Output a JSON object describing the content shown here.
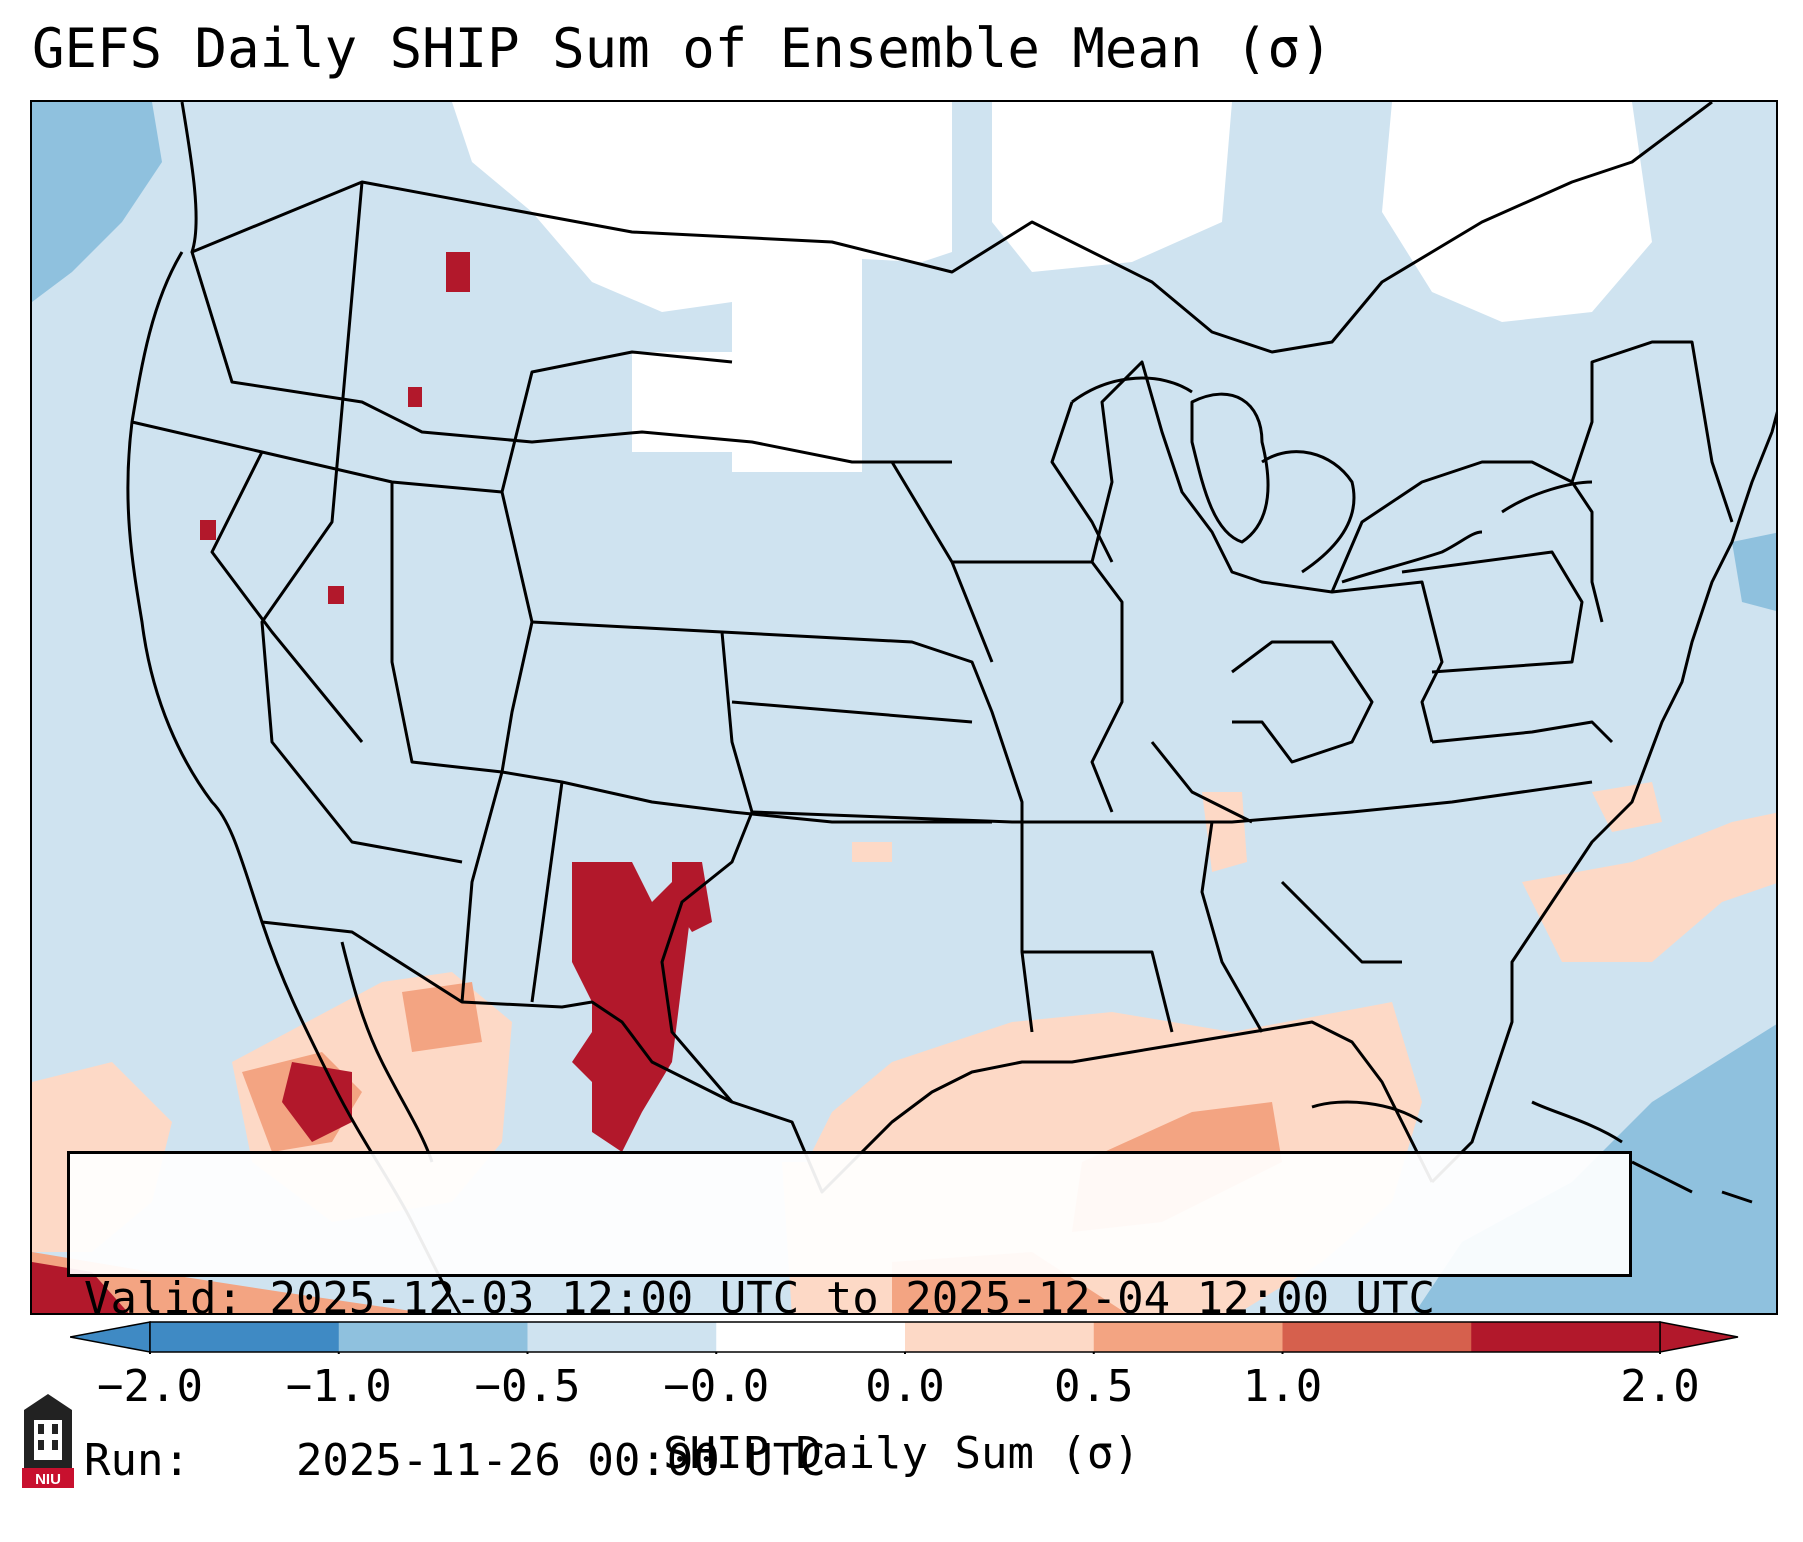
{
  "title": "GEFS Daily SHIP Sum of Ensemble Mean (σ)",
  "info": {
    "valid_label": "Valid:",
    "valid_value": "2025-12-03 12:00 UTC to 2025-12-04 12:00 UTC",
    "run_label": "Run:",
    "run_value": "2025-11-26 00:00 UTC"
  },
  "colorbar": {
    "label": "SHIP Daily Sum (σ)",
    "ticks": [
      "−2.0",
      "−1.0",
      "−0.5",
      "−0.0",
      "0.0",
      "0.5",
      "1.0",
      "2.0"
    ],
    "colors": [
      "#3f8ac4",
      "#8fc1de",
      "#cfe3f0",
      "#ffffff",
      "#fdd9c6",
      "#f3a482",
      "#d6604d",
      "#b2182b"
    ]
  },
  "logo": {
    "text": "NIU"
  }
}
